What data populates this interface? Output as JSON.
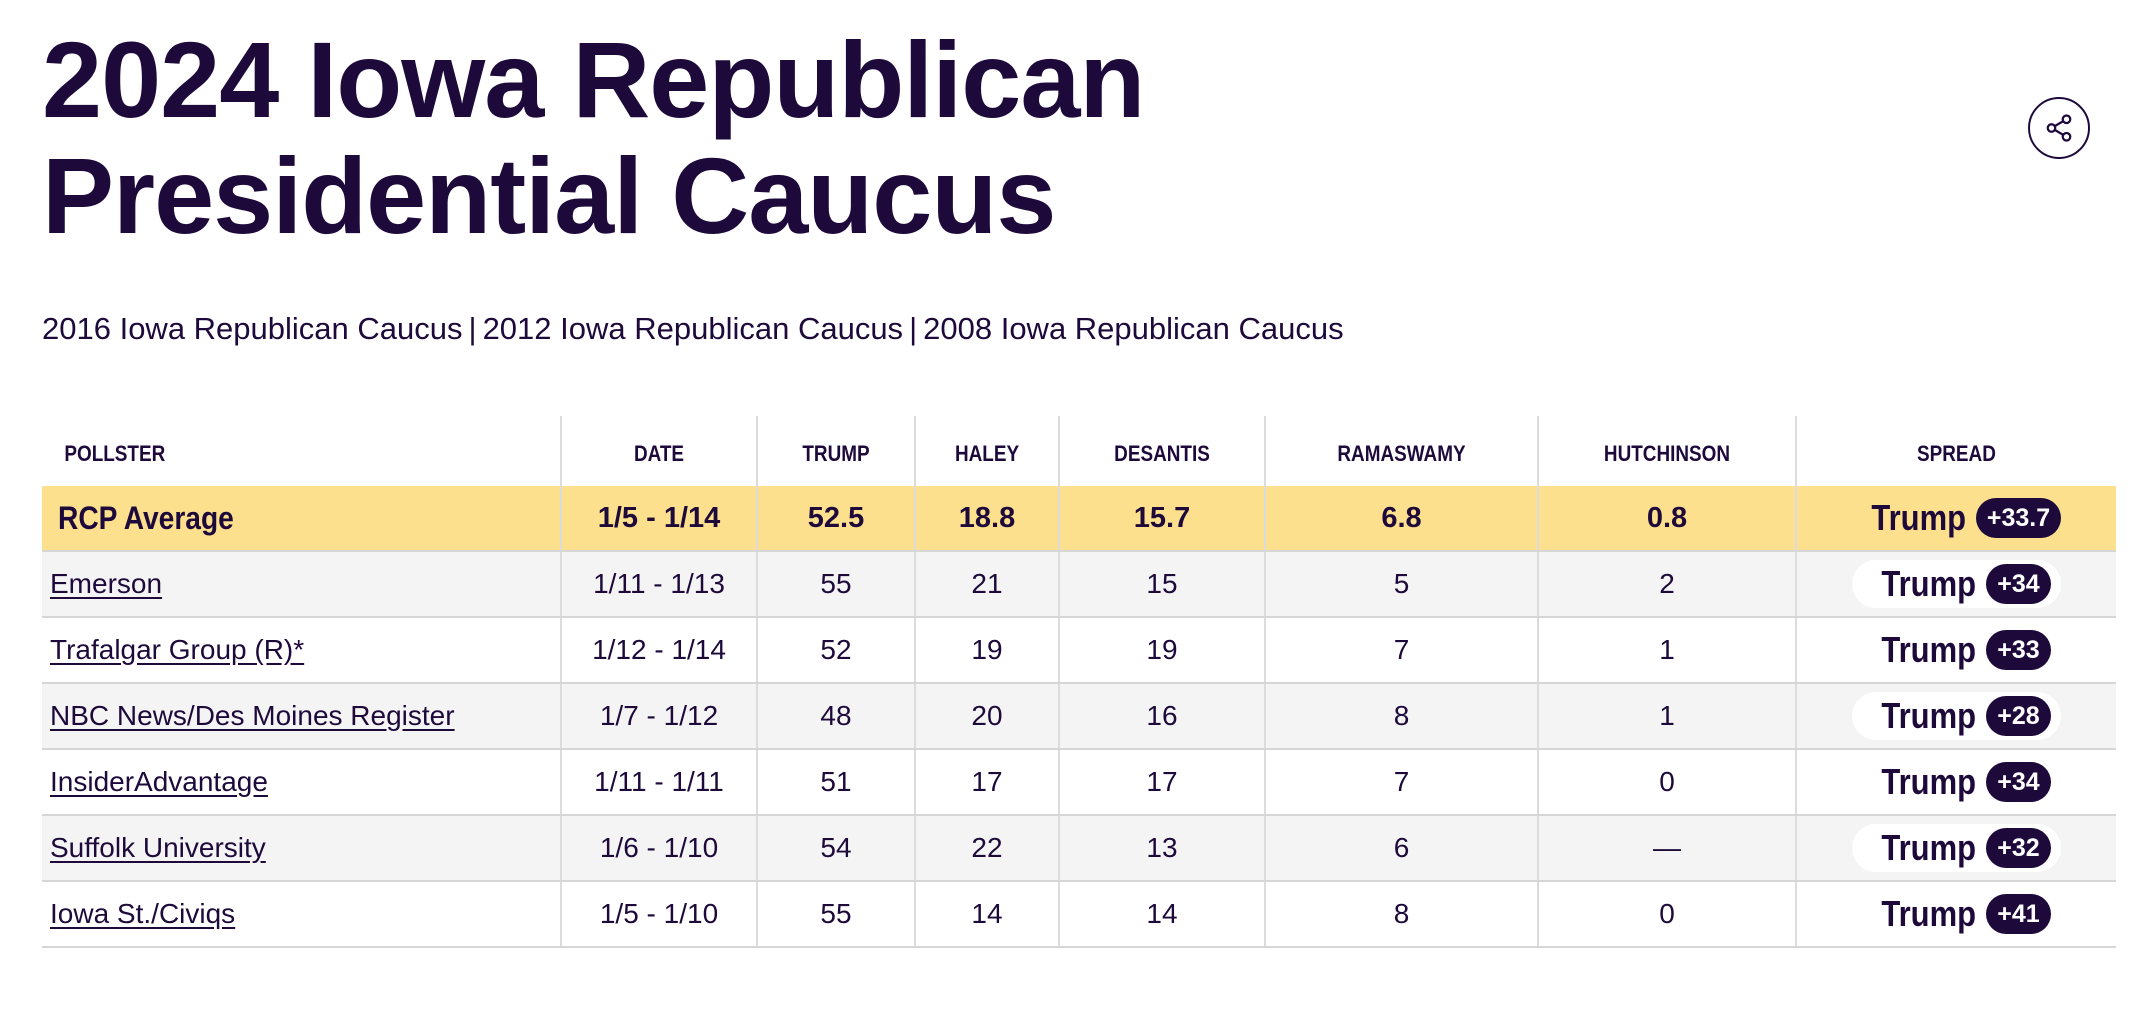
{
  "page": {
    "title_line1": "2024 Iowa Republican",
    "title_line2": "Presidential Caucus",
    "share_icon": "share-icon"
  },
  "related": {
    "links": [
      "2016 Iowa Republican Caucus",
      "2012 Iowa Republican Caucus",
      "2008 Iowa Republican Caucus"
    ],
    "separator": "|"
  },
  "table": {
    "headers": [
      "POLLSTER",
      "DATE",
      "TRUMP",
      "HALEY",
      "DESANTIS",
      "RAMASWAMY",
      "HUTCHINSON",
      "SPREAD"
    ],
    "average": {
      "pollster": "RCP Average",
      "date": "1/5 - 1/14",
      "trump": "52.5",
      "haley": "18.8",
      "desantis": "15.7",
      "ramaswamy": "6.8",
      "hutchinson": "0.8",
      "spread_name": "Trump",
      "spread_value": "+33.7"
    },
    "rows": [
      {
        "pollster": "Emerson",
        "date": "1/11 - 1/13",
        "trump": "55",
        "haley": "21",
        "desantis": "15",
        "ramaswamy": "5",
        "hutchinson": "2",
        "spread_name": "Trump",
        "spread_value": "+34"
      },
      {
        "pollster": "Trafalgar Group (R)*",
        "date": "1/12 - 1/14",
        "trump": "52",
        "haley": "19",
        "desantis": "19",
        "ramaswamy": "7",
        "hutchinson": "1",
        "spread_name": "Trump",
        "spread_value": "+33"
      },
      {
        "pollster": "NBC News/Des Moines Register",
        "date": "1/7 - 1/12",
        "trump": "48",
        "haley": "20",
        "desantis": "16",
        "ramaswamy": "8",
        "hutchinson": "1",
        "spread_name": "Trump",
        "spread_value": "+28"
      },
      {
        "pollster": "InsiderAdvantage",
        "date": "1/11 - 1/11",
        "trump": "51",
        "haley": "17",
        "desantis": "17",
        "ramaswamy": "7",
        "hutchinson": "0",
        "spread_name": "Trump",
        "spread_value": "+34"
      },
      {
        "pollster": "Suffolk University",
        "date": "1/6 - 1/10",
        "trump": "54",
        "haley": "22",
        "desantis": "13",
        "ramaswamy": "6",
        "hutchinson": "—",
        "spread_name": "Trump",
        "spread_value": "+32"
      },
      {
        "pollster": "Iowa St./Civiqs",
        "date": "1/5 - 1/10",
        "trump": "55",
        "haley": "14",
        "desantis": "14",
        "ramaswamy": "8",
        "hutchinson": "0",
        "spread_name": "Trump",
        "spread_value": "+41"
      }
    ]
  },
  "colors": {
    "ink": "#1d0a3b",
    "average_row": "#fde08d",
    "shaded_row": "#f4f4f4"
  }
}
